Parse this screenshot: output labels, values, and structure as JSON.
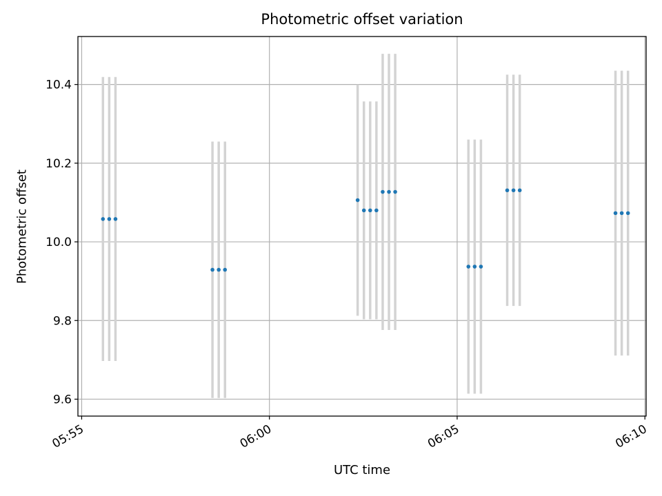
{
  "chart_data": {
    "type": "scatter",
    "title": "Photometric offset variation",
    "xlabel": "UTC time",
    "ylabel": "Photometric offset",
    "x_ticks": [
      "05:55",
      "06:00",
      "06:05",
      "06:10"
    ],
    "y_ticks": [
      "9.6",
      "9.8",
      "10.0",
      "10.2",
      "10.4"
    ],
    "x_range": [
      "05:54:54",
      "06:10:02"
    ],
    "ylim": [
      9.557,
      10.522
    ],
    "grid": true,
    "series": [
      {
        "marker_color": "#1f77b4",
        "errorbar_color": "#d3d3d3",
        "points": [
          {
            "t": "05:55:34",
            "y": 10.058,
            "err": 0.361
          },
          {
            "t": "05:55:44",
            "y": 10.058,
            "err": 0.361
          },
          {
            "t": "05:55:54",
            "y": 10.058,
            "err": 0.361
          },
          {
            "t": "05:58:29",
            "y": 9.929,
            "err": 0.326
          },
          {
            "t": "05:58:39",
            "y": 9.929,
            "err": 0.326
          },
          {
            "t": "05:58:49",
            "y": 9.929,
            "err": 0.326
          },
          {
            "t": "06:02:21",
            "y": 10.106,
            "err": 0.294
          },
          {
            "t": "06:02:31",
            "y": 10.08,
            "err": 0.277
          },
          {
            "t": "06:02:41",
            "y": 10.08,
            "err": 0.277
          },
          {
            "t": "06:02:51",
            "y": 10.08,
            "err": 0.277
          },
          {
            "t": "06:03:01",
            "y": 10.127,
            "err": 0.351
          },
          {
            "t": "06:03:11",
            "y": 10.127,
            "err": 0.351
          },
          {
            "t": "06:03:21",
            "y": 10.127,
            "err": 0.351
          },
          {
            "t": "06:05:18",
            "y": 9.937,
            "err": 0.323
          },
          {
            "t": "06:05:28",
            "y": 9.937,
            "err": 0.323
          },
          {
            "t": "06:05:38",
            "y": 9.937,
            "err": 0.323
          },
          {
            "t": "06:06:20",
            "y": 10.131,
            "err": 0.294
          },
          {
            "t": "06:06:30",
            "y": 10.131,
            "err": 0.294
          },
          {
            "t": "06:06:40",
            "y": 10.131,
            "err": 0.294
          },
          {
            "t": "06:09:13",
            "y": 10.073,
            "err": 0.362
          },
          {
            "t": "06:09:23",
            "y": 10.073,
            "err": 0.362
          },
          {
            "t": "06:09:33",
            "y": 10.073,
            "err": 0.362
          }
        ]
      }
    ]
  }
}
